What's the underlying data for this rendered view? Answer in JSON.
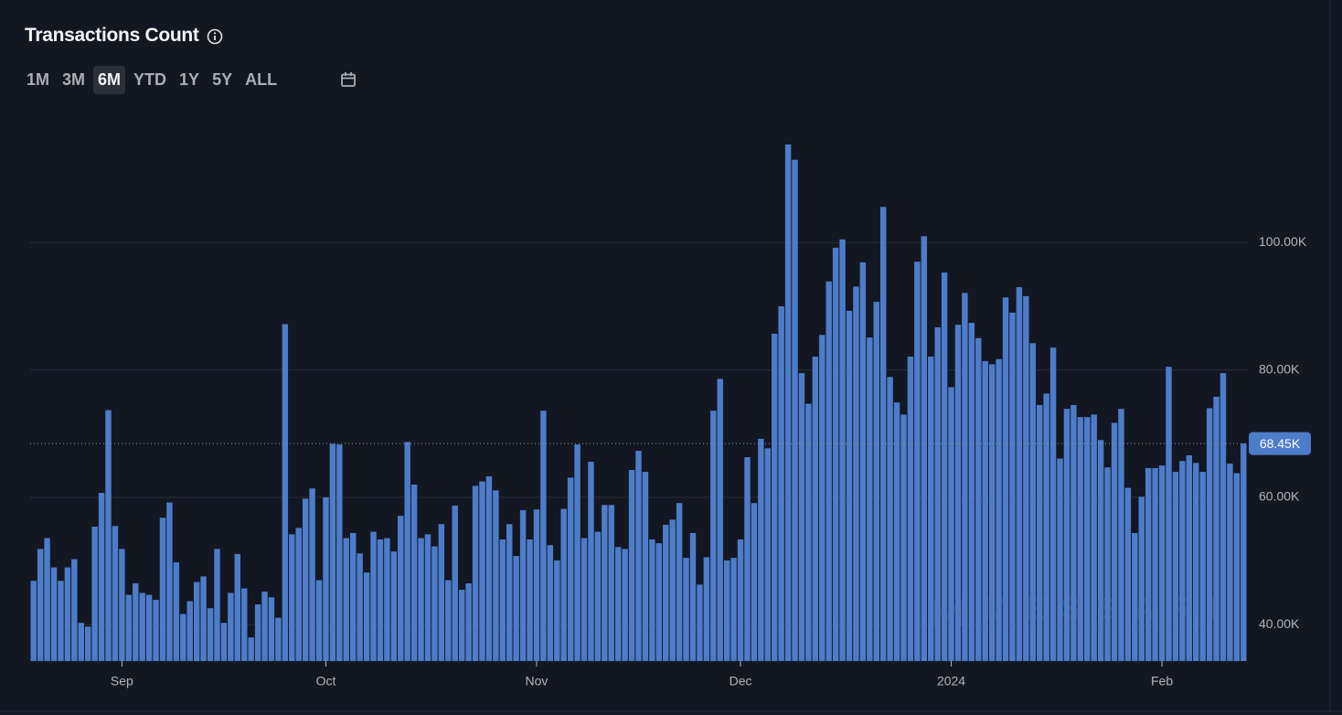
{
  "header": {
    "title": "Transactions Count",
    "ranges": [
      "1M",
      "3M",
      "6M",
      "YTD",
      "1Y",
      "5Y",
      "ALL"
    ],
    "active_range": 2
  },
  "chart_data": {
    "type": "bar",
    "color": "#4d7cc9",
    "watermark": "MESSARI",
    "categories": [
      null,
      null,
      null,
      null,
      null,
      null,
      null,
      null,
      null,
      null,
      null,
      null,
      null,
      "Sep",
      null,
      null,
      null,
      null,
      null,
      null,
      null,
      null,
      null,
      null,
      null,
      null,
      null,
      null,
      null,
      null,
      null,
      null,
      null,
      null,
      null,
      null,
      null,
      null,
      null,
      null,
      null,
      null,
      null,
      "Oct",
      null,
      null,
      null,
      null,
      null,
      null,
      null,
      null,
      null,
      null,
      null,
      null,
      null,
      null,
      null,
      null,
      null,
      null,
      null,
      null,
      null,
      null,
      null,
      null,
      null,
      null,
      null,
      null,
      null,
      null,
      "Nov",
      null,
      null,
      null,
      null,
      null,
      null,
      null,
      null,
      null,
      null,
      null,
      null,
      null,
      null,
      null,
      null,
      null,
      null,
      null,
      null,
      null,
      null,
      null,
      null,
      null,
      null,
      null,
      null,
      null,
      "Dec",
      null,
      null,
      null,
      null,
      null,
      null,
      null,
      null,
      null,
      null,
      null,
      null,
      null,
      null,
      null,
      null,
      null,
      null,
      null,
      null,
      null,
      null,
      null,
      null,
      null,
      null,
      null,
      null,
      null,
      null,
      "2024",
      null,
      null,
      null,
      null,
      null,
      null,
      null,
      null,
      null,
      null,
      null,
      null,
      null,
      null,
      null,
      null,
      null,
      null,
      null,
      null,
      null,
      null,
      null,
      null,
      null,
      null,
      null,
      null,
      null,
      null,
      "Feb",
      null,
      null,
      null,
      null,
      null,
      null,
      null,
      null,
      null,
      null,
      null,
      null
    ],
    "values": [
      46900,
      51900,
      53600,
      49000,
      46900,
      49000,
      50300,
      40300,
      39700,
      55400,
      60700,
      73700,
      55500,
      51900,
      44700,
      46500,
      45000,
      44700,
      43900,
      56800,
      59200,
      49800,
      41700,
      43700,
      46700,
      47600,
      42600,
      51900,
      40300,
      45000,
      51100,
      45700,
      38000,
      43200,
      45200,
      44300,
      41100,
      87200,
      54200,
      55200,
      59800,
      61400,
      47000,
      60000,
      68400,
      68300,
      53600,
      54400,
      51200,
      48200,
      54600,
      53400,
      53600,
      51500,
      57100,
      68700,
      62000,
      53600,
      54200,
      52300,
      55800,
      47000,
      58700,
      45500,
      46500,
      61800,
      62500,
      63300,
      61100,
      53400,
      55800,
      50800,
      58000,
      53400,
      58100,
      73600,
      52500,
      50100,
      58200,
      63100,
      68300,
      53600,
      65600,
      54600,
      58800,
      58800,
      52200,
      51900,
      64300,
      67300,
      64000,
      53400,
      52800,
      55700,
      56500,
      59100,
      50500,
      54400,
      46300,
      50600,
      73600,
      78600,
      50100,
      50500,
      53400,
      66300,
      59100,
      69200,
      67700,
      85700,
      90000,
      115400,
      113000,
      79500,
      74700,
      82100,
      85500,
      93900,
      99200,
      100500,
      89300,
      93100,
      96900,
      85100,
      90700,
      105600,
      78900,
      74900,
      73000,
      82100,
      97000,
      101000,
      82100,
      86700,
      95300,
      77300,
      87100,
      92100,
      87400,
      85000,
      81400,
      80900,
      81700,
      91400,
      89000,
      93000,
      91600,
      84200,
      74500,
      76300,
      83500,
      66100,
      73900,
      74500,
      72600,
      72600,
      73000,
      69000,
      64700,
      71700,
      73900,
      61500,
      54400,
      60100,
      64600,
      64600,
      65000,
      80500,
      64000,
      65700,
      66600,
      65400,
      64000,
      74000,
      75800,
      79500,
      65300,
      63800,
      68450
    ],
    "last_value_label": "68.45K",
    "ylim": [
      34300,
      120000
    ],
    "yticks": [
      {
        "value": 40000,
        "label": "40.00K"
      },
      {
        "value": 60000,
        "label": "60.00K"
      },
      {
        "value": 80000,
        "label": "80.00K"
      },
      {
        "value": 100000,
        "label": "100.00K"
      }
    ],
    "grid": true
  }
}
